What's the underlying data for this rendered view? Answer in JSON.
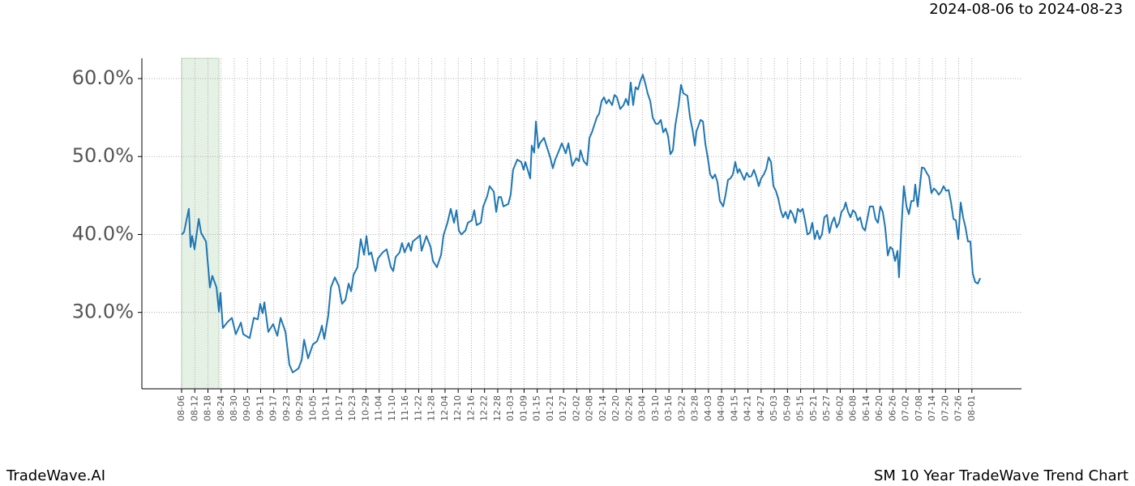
{
  "header": {
    "range": "2024-08-06 to 2024-08-23"
  },
  "footer": {
    "left": "TradeWave.AI",
    "right": "SM 10 Year TradeWave Trend Chart"
  },
  "chart_data": {
    "type": "line",
    "color": "#1f77b4",
    "grid": true,
    "highlight": {
      "xlim": [
        0,
        17
      ],
      "color": "#d9ead9"
    },
    "xlim": [
      -18.1,
      382.6
    ],
    "ylim": [
      20.2,
      62.6
    ],
    "yticks": [
      {
        "value": 30,
        "label": "30.0%"
      },
      {
        "value": 40,
        "label": "40.0%"
      },
      {
        "value": 50,
        "label": "50.0%"
      },
      {
        "value": 60,
        "label": "60.0%"
      }
    ],
    "xticks": [
      {
        "value": 0,
        "label": "08-06"
      },
      {
        "value": 6,
        "label": "08-12"
      },
      {
        "value": 12,
        "label": "08-18"
      },
      {
        "value": 18,
        "label": "08-24"
      },
      {
        "value": 24,
        "label": "08-30"
      },
      {
        "value": 30,
        "label": "09-05"
      },
      {
        "value": 36,
        "label": "09-11"
      },
      {
        "value": 42,
        "label": "09-17"
      },
      {
        "value": 48,
        "label": "09-23"
      },
      {
        "value": 54,
        "label": "09-29"
      },
      {
        "value": 60,
        "label": "10-05"
      },
      {
        "value": 66,
        "label": "10-11"
      },
      {
        "value": 72,
        "label": "10-17"
      },
      {
        "value": 78,
        "label": "10-23"
      },
      {
        "value": 84,
        "label": "10-29"
      },
      {
        "value": 90,
        "label": "11-04"
      },
      {
        "value": 96,
        "label": "11-10"
      },
      {
        "value": 102,
        "label": "11-16"
      },
      {
        "value": 108,
        "label": "11-22"
      },
      {
        "value": 114,
        "label": "11-28"
      },
      {
        "value": 120,
        "label": "12-04"
      },
      {
        "value": 126,
        "label": "12-10"
      },
      {
        "value": 132,
        "label": "12-16"
      },
      {
        "value": 138,
        "label": "12-22"
      },
      {
        "value": 144,
        "label": "12-28"
      },
      {
        "value": 150,
        "label": "01-03"
      },
      {
        "value": 156,
        "label": "01-09"
      },
      {
        "value": 162,
        "label": "01-15"
      },
      {
        "value": 168,
        "label": "01-21"
      },
      {
        "value": 174,
        "label": "01-27"
      },
      {
        "value": 180,
        "label": "02-02"
      },
      {
        "value": 186,
        "label": "02-08"
      },
      {
        "value": 192,
        "label": "02-14"
      },
      {
        "value": 198,
        "label": "02-20"
      },
      {
        "value": 204,
        "label": "02-26"
      },
      {
        "value": 210,
        "label": "03-04"
      },
      {
        "value": 216,
        "label": "03-10"
      },
      {
        "value": 222,
        "label": "03-16"
      },
      {
        "value": 228,
        "label": "03-22"
      },
      {
        "value": 234,
        "label": "03-28"
      },
      {
        "value": 240,
        "label": "04-03"
      },
      {
        "value": 246,
        "label": "04-09"
      },
      {
        "value": 252,
        "label": "04-15"
      },
      {
        "value": 258,
        "label": "04-21"
      },
      {
        "value": 264,
        "label": "04-27"
      },
      {
        "value": 270,
        "label": "05-03"
      },
      {
        "value": 276,
        "label": "05-09"
      },
      {
        "value": 282,
        "label": "05-15"
      },
      {
        "value": 288,
        "label": "05-21"
      },
      {
        "value": 294,
        "label": "05-27"
      },
      {
        "value": 300,
        "label": "06-02"
      },
      {
        "value": 306,
        "label": "06-08"
      },
      {
        "value": 312,
        "label": "06-14"
      },
      {
        "value": 318,
        "label": "06-20"
      },
      {
        "value": 324,
        "label": "06-26"
      },
      {
        "value": 330,
        "label": "07-02"
      },
      {
        "value": 336,
        "label": "07-08"
      },
      {
        "value": 342,
        "label": "07-14"
      },
      {
        "value": 348,
        "label": "07-20"
      },
      {
        "value": 354,
        "label": "07-26"
      },
      {
        "value": 360,
        "label": "08-01"
      }
    ],
    "x": [
      0,
      1.1,
      3.3,
      4.1,
      4.8,
      5.9,
      7.8,
      8.9,
      11.1,
      12.9,
      14.0,
      15.9,
      17.0,
      17.7,
      18.8,
      20.7,
      22.9,
      24.7,
      27.0,
      28.1,
      31.0,
      32.9,
      34.7,
      35.8,
      36.9,
      37.7,
      39.5,
      41.7,
      43.6,
      45.1,
      47.3,
      49.1,
      50.6,
      53.2,
      54.7,
      55.8,
      57.6,
      59.8,
      61.7,
      63.2,
      63.9,
      65.0,
      66.8,
      68.0,
      69.8,
      71.6,
      73.1,
      74.6,
      76.1,
      77.2,
      78.3,
      80.1,
      81.6,
      83.1,
      84.2,
      85.3,
      86.4,
      88.3,
      89.4,
      91.6,
      93.4,
      95.3,
      96.4,
      97.5,
      99.3,
      100.4,
      101.6,
      103.4,
      104.5,
      105.3,
      107.5,
      108.6,
      109.3,
      111.5,
      113.4,
      114.5,
      116.3,
      118.2,
      119.3,
      121.1,
      122.6,
      124.1,
      125.2,
      126.3,
      127.4,
      129.3,
      130.4,
      132.2,
      133.3,
      134.4,
      136.3,
      137.4,
      139.2,
      140.3,
      142.2,
      143.3,
      144.4,
      145.5,
      146.6,
      148.8,
      149.9,
      151.0,
      152.9,
      154.7,
      155.8,
      156.6,
      158.8,
      159.5,
      160.6,
      161.4,
      162.5,
      163.2,
      165.1,
      166.2,
      168.0,
      169.1,
      170.2,
      172.1,
      173.2,
      175.0,
      176.2,
      178.0,
      179.8,
      181.0,
      181.7,
      183.2,
      184.7,
      185.8,
      186.9,
      189.1,
      190.2,
      191.3,
      192.4,
      193.5,
      194.6,
      196.1,
      197.2,
      198.3,
      199.8,
      201.3,
      202.4,
      203.5,
      204.6,
      205.7,
      206.8,
      207.9,
      209.0,
      210.1,
      211.2,
      212.3,
      213.5,
      214.6,
      216.0,
      217.1,
      218.3,
      219.4,
      220.5,
      221.6,
      222.7,
      223.8,
      224.9,
      226.4,
      227.5,
      228.6,
      230.4,
      231.6,
      232.7,
      233.8,
      234.5,
      236.4,
      237.5,
      238.6,
      239.7,
      240.8,
      241.9,
      243.0,
      244.1,
      245.2,
      246.7,
      247.8,
      248.9,
      250.0,
      251.1,
      252.2,
      253.3,
      254.1,
      255.2,
      256.3,
      257.4,
      258.5,
      259.6,
      260.7,
      261.8,
      262.9,
      264.0,
      265.2,
      266.3,
      267.4,
      268.5,
      269.6,
      270.7,
      271.8,
      272.9,
      274.0,
      275.1,
      276.2,
      277.3,
      278.4,
      279.6,
      280.7,
      281.8,
      282.9,
      284.0,
      285.1,
      286.2,
      287.3,
      288.4,
      289.5,
      290.6,
      291.7,
      292.8,
      294.0,
      295.1,
      296.2,
      297.3,
      298.4,
      299.5,
      300.6,
      301.7,
      302.5,
      303.6,
      304.7,
      305.8,
      306.9,
      308.0,
      309.1,
      310.2,
      311.3,
      312.8,
      313.5,
      315.0,
      316.1,
      317.2,
      318.3,
      319.4,
      320.5,
      321.7,
      322.8,
      323.9,
      325.0,
      326.1,
      326.8,
      327.9,
      329.0,
      330.2,
      331.3,
      332.4,
      333.5,
      334.2,
      335.3,
      336.4,
      337.2,
      338.3,
      339.4,
      340.5,
      341.6,
      342.7,
      343.8,
      344.9,
      346.0,
      347.1,
      348.2,
      349.4,
      350.5,
      351.6,
      352.7,
      353.8,
      354.9,
      356.0,
      357.1,
      358.2,
      359.3,
      360.4,
      361.5,
      362.7,
      363.8
    ],
    "values": [
      40.0,
      40.3,
      43.3,
      38.4,
      39.8,
      38.1,
      42.0,
      40.2,
      39.1,
      33.2,
      34.7,
      33.2,
      30.1,
      32.5,
      28.0,
      28.7,
      29.3,
      27.2,
      28.7,
      27.2,
      26.7,
      29.3,
      29.1,
      31.1,
      29.9,
      31.3,
      27.5,
      28.5,
      27.0,
      29.3,
      27.5,
      23.3,
      22.3,
      22.8,
      23.9,
      26.5,
      24.1,
      25.9,
      26.3,
      27.5,
      28.3,
      26.6,
      29.6,
      33.2,
      34.5,
      33.4,
      31.1,
      31.6,
      33.7,
      32.7,
      34.8,
      35.8,
      39.4,
      37.4,
      39.8,
      37.4,
      37.7,
      35.3,
      36.9,
      37.7,
      38.1,
      35.8,
      35.3,
      37.1,
      37.7,
      38.9,
      37.7,
      38.9,
      37.9,
      39.1,
      39.6,
      39.9,
      37.9,
      39.8,
      38.4,
      36.6,
      35.8,
      37.4,
      39.9,
      41.5,
      43.3,
      41.5,
      43.1,
      40.5,
      40.0,
      40.5,
      41.5,
      41.8,
      43.1,
      41.2,
      41.5,
      43.6,
      44.9,
      46.2,
      45.5,
      42.9,
      44.8,
      44.8,
      43.6,
      43.9,
      45.1,
      48.3,
      49.6,
      49.3,
      48.3,
      49.3,
      47.2,
      51.4,
      50.5,
      54.5,
      51.1,
      51.7,
      52.4,
      51.4,
      49.8,
      48.5,
      49.6,
      50.9,
      51.7,
      50.4,
      51.7,
      48.8,
      49.8,
      49.4,
      50.8,
      49.4,
      48.9,
      52.4,
      53.1,
      55.0,
      55.5,
      57.1,
      57.6,
      56.8,
      57.3,
      56.6,
      57.9,
      57.6,
      56.1,
      56.6,
      57.4,
      56.6,
      59.5,
      56.6,
      58.9,
      58.6,
      59.7,
      60.5,
      59.4,
      58.1,
      57.1,
      55.0,
      54.2,
      54.2,
      54.7,
      53.1,
      53.6,
      52.6,
      50.3,
      50.8,
      54.0,
      56.6,
      59.2,
      58.1,
      57.8,
      55.0,
      53.5,
      51.4,
      53.2,
      54.7,
      54.5,
      51.6,
      49.8,
      47.7,
      47.2,
      47.7,
      46.7,
      44.3,
      43.6,
      45.1,
      47.0,
      47.2,
      47.7,
      49.3,
      47.9,
      48.4,
      47.7,
      47.0,
      47.9,
      47.4,
      47.5,
      48.3,
      47.4,
      46.2,
      47.2,
      47.7,
      48.4,
      49.9,
      49.3,
      46.2,
      45.6,
      44.6,
      43.1,
      42.2,
      42.9,
      42.0,
      43.1,
      42.6,
      41.5,
      43.3,
      42.9,
      43.3,
      41.8,
      40.0,
      40.2,
      41.5,
      39.4,
      40.5,
      39.4,
      40.0,
      42.2,
      42.5,
      40.2,
      41.5,
      42.2,
      40.9,
      41.5,
      42.9,
      43.3,
      44.1,
      42.9,
      42.2,
      43.1,
      42.8,
      41.8,
      42.2,
      40.9,
      40.5,
      42.6,
      43.6,
      43.6,
      42.0,
      41.5,
      43.6,
      42.9,
      40.9,
      37.3,
      38.4,
      38.1,
      36.6,
      37.9,
      34.5,
      40.9,
      46.2,
      43.6,
      42.6,
      44.3,
      44.3,
      46.4,
      43.6,
      46.4,
      48.6,
      48.5,
      47.9,
      47.4,
      45.3,
      45.9,
      45.6,
      45.1,
      45.5,
      46.2,
      45.6,
      45.7,
      44.1,
      42.0,
      41.8,
      39.4,
      44.1,
      42.2,
      40.9,
      39.1,
      39.1,
      35.0,
      33.9,
      33.7,
      34.4
    ]
  }
}
